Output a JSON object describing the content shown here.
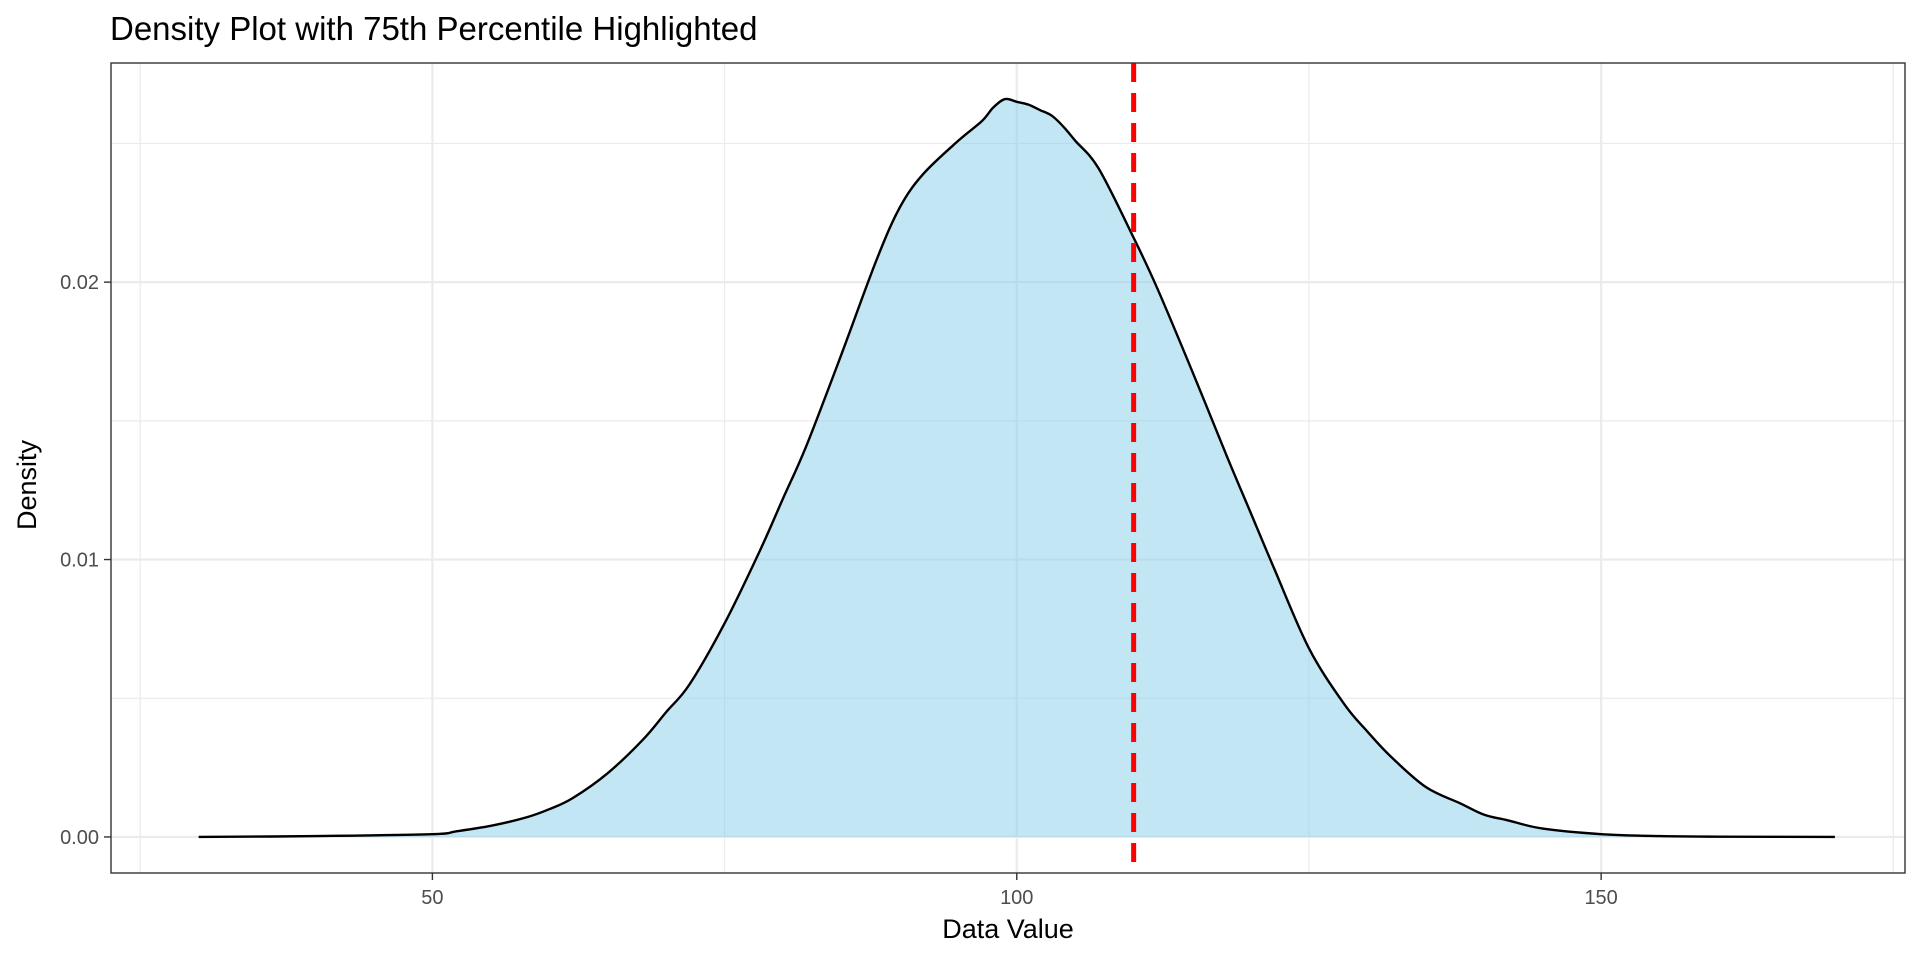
{
  "chart_data": {
    "type": "area",
    "title": "Density Plot with 75th Percentile Highlighted",
    "xlabel": "Data Value",
    "ylabel": "Density",
    "xlim": [
      22.5,
      176
    ],
    "ylim": [
      -0.0013,
      0.0279
    ],
    "x_ticks": [
      50,
      100,
      150
    ],
    "x_tick_labels": [
      "50",
      "100",
      "150"
    ],
    "x_minor_ticks": [
      25,
      75,
      125,
      175
    ],
    "y_ticks": [
      0,
      0.01,
      0.02
    ],
    "y_tick_labels": [
      "0.00",
      "0.01",
      "0.02"
    ],
    "y_minor_ticks": [
      0.005,
      0.015,
      0.025
    ],
    "grid": true,
    "series": [
      {
        "x": [
          30,
          40,
          50,
          52,
          55,
          58,
          60,
          62,
          65,
          68,
          70,
          72,
          75,
          78,
          80,
          82,
          85,
          88,
          90,
          92,
          95,
          97,
          98,
          99,
          100,
          101,
          102,
          103,
          104,
          105,
          107,
          110,
          112,
          115,
          118,
          120,
          122,
          125,
          128,
          130,
          132,
          135,
          138,
          140,
          142,
          145,
          150,
          155,
          160,
          170
        ],
        "values": [
          0.0,
          3e-05,
          0.0001,
          0.0002,
          0.0004,
          0.0007,
          0.001,
          0.0014,
          0.0023,
          0.0035,
          0.0045,
          0.0055,
          0.0077,
          0.0103,
          0.0122,
          0.0141,
          0.0174,
          0.0208,
          0.0227,
          0.0239,
          0.0251,
          0.0258,
          0.0263,
          0.0266,
          0.0265,
          0.0264,
          0.0262,
          0.026,
          0.0256,
          0.0251,
          0.0241,
          0.0216,
          0.0198,
          0.0168,
          0.0137,
          0.0117,
          0.0097,
          0.0068,
          0.0048,
          0.0038,
          0.0029,
          0.0018,
          0.0012,
          0.0008,
          0.0006,
          0.0003,
          0.0001,
          3e-05,
          1e-05,
          0.0
        ]
      }
    ],
    "reference_lines": [
      {
        "axis": "x",
        "value": 110,
        "style": "dashed",
        "color": "#ff0000"
      }
    ],
    "colors": {
      "fill": "#87ceeb",
      "fill_opacity": 0.5,
      "line": "#000000",
      "grid": "#ebebeb",
      "panel_border": "#333333"
    }
  }
}
